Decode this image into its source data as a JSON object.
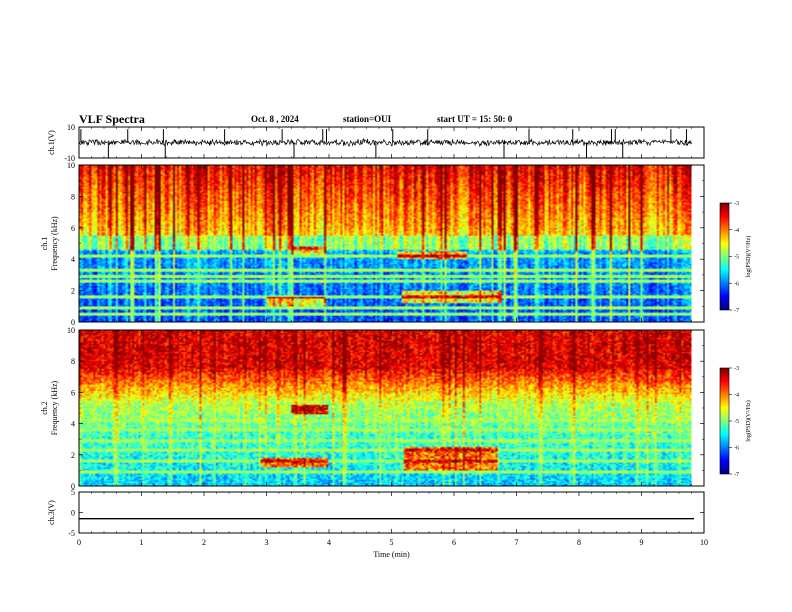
{
  "header": {
    "title": "VLF Spectra",
    "date": "Oct. 8 , 2024",
    "station": "station=OUI",
    "start_ut": "start UT = 15: 50: 0"
  },
  "chart_data": {
    "type": "heatmap",
    "x_axis": {
      "label": "Time (min)",
      "range": [
        0,
        10
      ],
      "ticks": [
        "0",
        "1",
        "2",
        "3",
        "4",
        "5",
        "6",
        "7",
        "8",
        "9",
        "10"
      ],
      "data_end_min": 9.8
    },
    "panels": [
      {
        "name": "ch.1(V)",
        "kind": "waveform",
        "ylabel": "ch.1(V)",
        "ylim": [
          -10,
          10
        ],
        "yticks": [
          "10",
          "-10"
        ],
        "trace_color": "#000000",
        "spike_times_min": [
          0.03,
          0.47,
          0.78,
          1.35,
          1.38,
          2.33,
          3.25,
          3.44,
          3.9,
          3.96,
          4.75,
          5.02,
          5.58,
          6.8,
          7.2,
          7.9,
          8.12,
          8.52,
          8.58,
          8.7,
          9.47,
          9.72
        ]
      },
      {
        "name": "ch.1",
        "kind": "spectrogram",
        "ylabel": "ch.1",
        "ylabel2": "Frequency (kHz)",
        "ylim": [
          0,
          10
        ],
        "yticks": [
          "0",
          "2",
          "4",
          "6",
          "8",
          "10"
        ],
        "colorbar": {
          "label": "log(PSD)(V²/Hz)",
          "range": [
            -7,
            -3
          ],
          "ticks": [
            "-3",
            "-4",
            "-5",
            "-6",
            "-7"
          ]
        },
        "bands_khz": [
          0.5,
          0.9,
          1.6,
          2.6,
          2.9,
          3.3,
          4.2
        ],
        "bursts": [
          {
            "t": [
              3.4,
              3.95
            ],
            "f": [
              4.3,
              4.8
            ]
          },
          {
            "t": [
              5.1,
              6.2
            ],
            "f": [
              4.0,
              4.5
            ]
          },
          {
            "t": [
              5.15,
              6.75
            ],
            "f": [
              1.2,
              2.0
            ]
          },
          {
            "t": [
              3.0,
              3.95
            ],
            "f": [
              1.0,
              1.6
            ]
          }
        ]
      },
      {
        "name": "ch.2",
        "kind": "spectrogram",
        "ylabel": "ch.2",
        "ylabel2": "Frequency (kHz)",
        "ylim": [
          0,
          10
        ],
        "yticks": [
          "0",
          "2",
          "4",
          "6",
          "8",
          "10"
        ],
        "colorbar": {
          "label": "log(PSD)(V²/Hz)",
          "range": [
            -7,
            -3
          ],
          "ticks": [
            "-3",
            "-4",
            "-5",
            "-6",
            "-7"
          ]
        },
        "bands_khz": [
          0.9,
          1.6,
          2.3,
          2.9,
          3.6,
          4.2
        ],
        "bursts": [
          {
            "t": [
              3.4,
              4.0
            ],
            "f": [
              4.6,
              5.2
            ]
          },
          {
            "t": [
              5.2,
              6.7
            ],
            "f": [
              1.0,
              2.5
            ]
          },
          {
            "t": [
              2.9,
              4.0
            ],
            "f": [
              1.2,
              1.8
            ]
          }
        ]
      },
      {
        "name": "ch.3(V)",
        "kind": "waveform",
        "ylabel": "ch.3(V)",
        "ylim": [
          -5,
          5
        ],
        "yticks": [
          "5",
          "0",
          "-5"
        ],
        "constant_value": -1.5,
        "trace_color": "#000000"
      }
    ]
  }
}
